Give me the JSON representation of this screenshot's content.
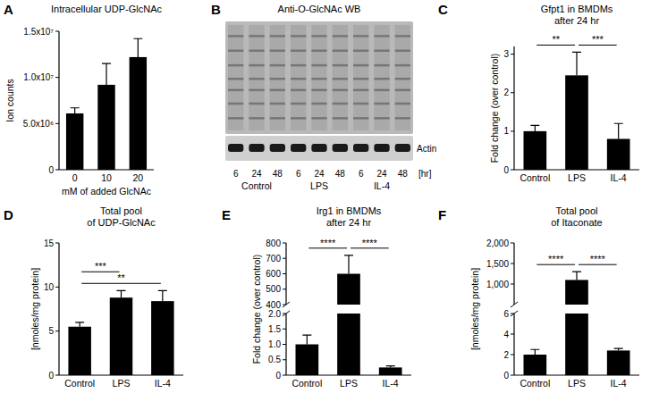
{
  "chart_data": [
    {
      "type": "bar",
      "panel": "A",
      "title": [
        "Intracellular UDP-GlcNAc"
      ],
      "y_label": "Ion counts",
      "x_label": "mM of added GlcNAc",
      "categories": [
        "0",
        "10",
        "20"
      ],
      "values": [
        6100000,
        9200000,
        12200000
      ],
      "errors": [
        600000,
        2300000,
        2000000
      ],
      "color": "#000000",
      "ylim": [
        0,
        15000000
      ],
      "yticks": [
        0,
        {
          "value": 5000000,
          "label": "5.0x10⁶"
        },
        {
          "value": 10000000,
          "label": "1.0x10⁷"
        },
        {
          "value": 15000000,
          "label": "1.5x10⁷"
        }
      ]
    },
    {
      "type": "blot",
      "panel": "B",
      "title": "Anti-O-GlcNAc WB",
      "categories": [
        "6",
        "24",
        "48",
        "6",
        "24",
        "48",
        "6",
        "24",
        "48"
      ],
      "groups": [
        "Control",
        "LPS",
        "IL-4"
      ],
      "x_label": "[hr]",
      "loading_control": "Actin"
    },
    {
      "type": "bar",
      "panel": "C",
      "title": [
        "Gfpt1 in BMDMs",
        "after 24 hr"
      ],
      "y_label": "Fold change (over control)",
      "categories": [
        "Control",
        "LPS",
        "IL-4"
      ],
      "values": [
        1.0,
        2.45,
        0.8
      ],
      "errors": [
        0.15,
        0.6,
        0.4
      ],
      "color": "#000000",
      "ylim": [
        0,
        3.2
      ],
      "yticks": [
        0,
        1,
        2,
        3
      ],
      "significance": [
        {
          "pair": [
            "Control",
            "LPS"
          ],
          "label": "**"
        },
        {
          "pair": [
            "LPS",
            "IL-4"
          ],
          "label": "***"
        }
      ]
    },
    {
      "type": "bar",
      "panel": "D",
      "title": [
        "Total pool",
        "of UDP-GlcNAc"
      ],
      "y_label": "[nmoles/mg protein]",
      "categories": [
        "Control",
        "LPS",
        "IL-4"
      ],
      "values": [
        5.5,
        8.8,
        8.4
      ],
      "errors": [
        0.5,
        0.8,
        1.2
      ],
      "color": "#000000",
      "ylim": [
        0,
        15
      ],
      "yticks": [
        0,
        5,
        10,
        15
      ],
      "significance": [
        {
          "pair": [
            "Control",
            "IL-4"
          ],
          "label": "**"
        },
        {
          "pair": [
            "Control",
            "LPS"
          ],
          "label": "***"
        }
      ]
    },
    {
      "type": "bar",
      "panel": "E",
      "title": [
        "Irg1 in BMDMs",
        "after 24 hr"
      ],
      "y_label": "Fold change (over control)",
      "categories": [
        "Control",
        "LPS",
        "IL-4"
      ],
      "values": [
        1.0,
        600,
        0.25
      ],
      "errors": [
        0.3,
        120,
        0.05
      ],
      "color": "#000000",
      "ylim": [
        0,
        800
      ],
      "axis_break": [
        2,
        400
      ],
      "yticks": [
        0,
        0.5,
        {
          "value": 1,
          "label": "1.0"
        },
        1.5,
        {
          "value": 2,
          "label": "2.0"
        },
        400,
        500,
        600,
        700,
        800
      ],
      "significance": [
        {
          "pair": [
            "Control",
            "LPS"
          ],
          "label": "****"
        },
        {
          "pair": [
            "LPS",
            "IL-4"
          ],
          "label": "****"
        }
      ]
    },
    {
      "type": "bar",
      "panel": "F",
      "title": [
        "Total pool",
        "of Itaconate"
      ],
      "y_label": "[nmoles/mg protein]",
      "categories": [
        "Control",
        "LPS",
        "IL-4"
      ],
      "values": [
        2.0,
        1100,
        2.4
      ],
      "errors": [
        0.5,
        200,
        0.2
      ],
      "color": "#000000",
      "ylim": [
        0,
        2000
      ],
      "axis_break": [
        6,
        500
      ],
      "yticks": [
        0,
        2,
        4,
        6,
        {
          "value": 1000,
          "label": "1,000"
        },
        {
          "value": 1500,
          "label": "1,500"
        },
        {
          "value": 2000,
          "label": "2,000"
        }
      ],
      "significance": [
        {
          "pair": [
            "Control",
            "LPS"
          ],
          "label": "****"
        },
        {
          "pair": [
            "LPS",
            "IL-4"
          ],
          "label": "****"
        }
      ]
    }
  ]
}
